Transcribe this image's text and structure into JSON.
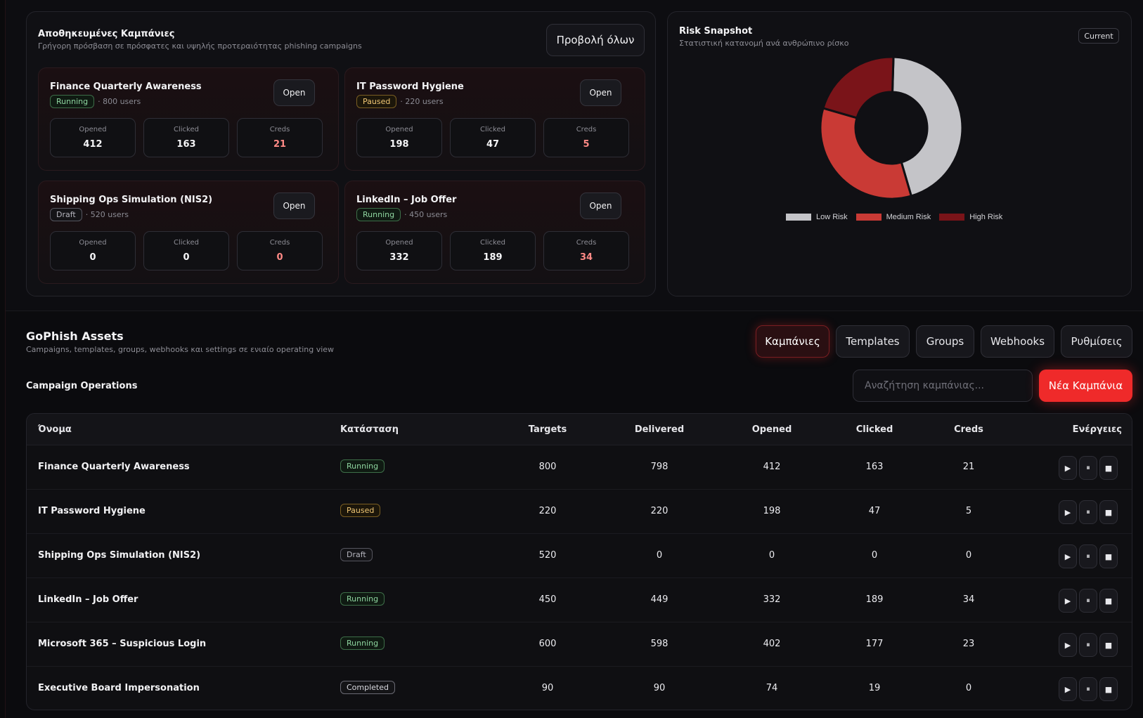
{
  "saved": {
    "title": "Αποθηκευμένες Καμπάνιες",
    "subtitle": "Γρήγορη πρόσβαση σε πρόσφατες και υψηλής προτεραιότητας phishing campaigns",
    "view_all_label": "Προβολή όλων",
    "open_label": "Open",
    "stat_labels": {
      "opened": "Opened",
      "clicked": "Clicked",
      "creds": "Creds"
    },
    "cards": [
      {
        "name": "Finance Quarterly Awareness",
        "status": "Running",
        "users": "· 800 users",
        "opened": "412",
        "clicked": "163",
        "creds": "21"
      },
      {
        "name": "IT Password Hygiene",
        "status": "Paused",
        "users": "· 220 users",
        "opened": "198",
        "clicked": "47",
        "creds": "5"
      },
      {
        "name": "Shipping Ops Simulation (NIS2)",
        "status": "Draft",
        "users": "· 520 users",
        "opened": "0",
        "clicked": "0",
        "creds": "0"
      },
      {
        "name": "LinkedIn – Job Offer",
        "status": "Running",
        "users": "· 450 users",
        "opened": "332",
        "clicked": "189",
        "creds": "34"
      }
    ]
  },
  "risk": {
    "title": "Risk Snapshot",
    "subtitle": "Στατιστική κατανομή ανά ανθρώπινο ρίσκο",
    "badge": "Current",
    "legend": [
      {
        "label": "Low Risk",
        "color": "#c4c4c8"
      },
      {
        "label": "Medium Risk",
        "color": "#c93a35"
      },
      {
        "label": "High Risk",
        "color": "#7a1419"
      }
    ]
  },
  "chart_data": {
    "type": "pie",
    "donut": true,
    "categories": [
      "Low Risk",
      "Medium Risk",
      "High Risk"
    ],
    "values": [
      45,
      34,
      21
    ],
    "colors": [
      "#c4c4c8",
      "#c93a35",
      "#7a1419"
    ],
    "legend_position": "bottom"
  },
  "assets": {
    "title": "GoPhish Assets",
    "subtitle": "Campaigns, templates, groups, webhooks και settings σε ενιαίο operating view",
    "tabs": [
      "Καμπάνιες",
      "Templates",
      "Groups",
      "Webhooks",
      "Ρυθμίσεις"
    ]
  },
  "ops": {
    "title": "Campaign Operations",
    "search_placeholder": "Αναζήτηση καμπάνιας...",
    "new_button": "Νέα Καμπάνια"
  },
  "table": {
    "headers": [
      "Όνομα",
      "Κατάσταση",
      "Targets",
      "Delivered",
      "Opened",
      "Clicked",
      "Creds",
      "Ενέργειες"
    ],
    "rows": [
      {
        "name": "Finance Quarterly Awareness",
        "status": "Running",
        "targets": "800",
        "delivered": "798",
        "opened": "412",
        "clicked": "163",
        "creds": "21"
      },
      {
        "name": "IT Password Hygiene",
        "status": "Paused",
        "targets": "220",
        "delivered": "220",
        "opened": "198",
        "clicked": "47",
        "creds": "5"
      },
      {
        "name": "Shipping Ops Simulation (NIS2)",
        "status": "Draft",
        "targets": "520",
        "delivered": "0",
        "opened": "0",
        "clicked": "0",
        "creds": "0"
      },
      {
        "name": "LinkedIn – Job Offer",
        "status": "Running",
        "targets": "450",
        "delivered": "449",
        "opened": "332",
        "clicked": "189",
        "creds": "34"
      },
      {
        "name": "Microsoft 365 – Suspicious Login",
        "status": "Running",
        "targets": "600",
        "delivered": "598",
        "opened": "402",
        "clicked": "177",
        "creds": "23"
      },
      {
        "name": "Executive Board Impersonation",
        "status": "Completed",
        "targets": "90",
        "delivered": "90",
        "opened": "74",
        "clicked": "19",
        "creds": "0"
      }
    ],
    "actions": [
      {
        "icon": "play-icon",
        "glyph": "▶"
      },
      {
        "icon": "pause-icon",
        "glyph": "⏸"
      },
      {
        "icon": "stop-icon",
        "glyph": "■"
      }
    ]
  }
}
